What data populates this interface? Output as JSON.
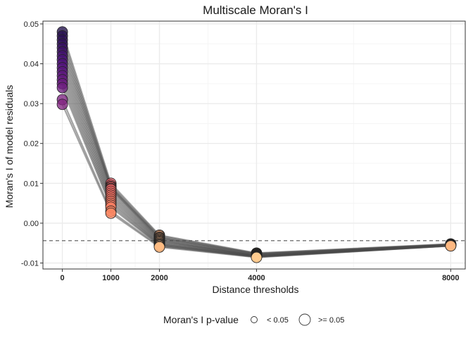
{
  "chart_data": {
    "type": "line",
    "title": "Multiscale Moran's I",
    "xlabel": "Distance thresholds",
    "ylabel": "Moran's I of model residuals",
    "x": [
      0,
      1000,
      2000,
      4000,
      8000
    ],
    "x_tick_labels": [
      "0",
      "1000",
      "2000",
      "4000",
      "8000"
    ],
    "xlim": [
      -400,
      8300
    ],
    "ylim": [
      -0.0115,
      0.0507
    ],
    "y_ticks": [
      -0.01,
      0.0,
      0.01,
      0.02,
      0.03,
      0.04,
      0.05
    ],
    "y_tick_labels": [
      "-0.01",
      "0.00",
      "0.01",
      "0.02",
      "0.03",
      "0.04",
      "0.05"
    ],
    "reference_line": {
      "y": -0.0044,
      "style": "dashed"
    },
    "grid": true,
    "point_fill_scale": "magma",
    "series": [
      {
        "values": [
          0.048,
          0.01,
          -0.003,
          -0.0075,
          -0.0052
        ]
      },
      {
        "values": [
          0.047,
          0.0095,
          -0.0032,
          -0.0076,
          -0.0053
        ]
      },
      {
        "values": [
          0.046,
          0.0092,
          -0.0035,
          -0.0077,
          -0.0054
        ]
      },
      {
        "values": [
          0.045,
          0.009,
          -0.0036,
          -0.0078,
          -0.0053
        ]
      },
      {
        "values": [
          0.044,
          0.0087,
          -0.0038,
          -0.0079,
          -0.0054
        ]
      },
      {
        "values": [
          0.043,
          0.0085,
          -0.004,
          -0.008,
          -0.0055
        ]
      },
      {
        "values": [
          0.042,
          0.008,
          -0.0042,
          -0.0081,
          -0.0054
        ]
      },
      {
        "values": [
          0.041,
          0.0075,
          -0.0044,
          -0.0082,
          -0.0055
        ]
      },
      {
        "values": [
          0.04,
          0.007,
          -0.0046,
          -0.0081,
          -0.0055
        ]
      },
      {
        "values": [
          0.039,
          0.0065,
          -0.0048,
          -0.0082,
          -0.0056
        ]
      },
      {
        "values": [
          0.038,
          0.006,
          -0.005,
          -0.0083,
          -0.0055
        ]
      },
      {
        "values": [
          0.037,
          0.0055,
          -0.0052,
          -0.0083,
          -0.0056
        ]
      },
      {
        "values": [
          0.036,
          0.005,
          -0.0053,
          -0.0084,
          -0.0056
        ]
      },
      {
        "values": [
          0.035,
          0.0045,
          -0.0055,
          -0.0084,
          -0.0057
        ]
      },
      {
        "values": [
          0.034,
          0.004,
          -0.0056,
          -0.0085,
          -0.0056
        ]
      },
      {
        "values": [
          0.031,
          0.003,
          -0.0058,
          -0.0085,
          -0.0057
        ]
      },
      {
        "values": [
          0.0298,
          0.0025,
          -0.006,
          -0.0086,
          -0.0057
        ]
      }
    ],
    "legend": {
      "title": "Moran's I p-value",
      "position": "bottom",
      "entries": [
        {
          "label": "< 0.05",
          "size": "small"
        },
        {
          "label": ">= 0.05",
          "size": "large"
        }
      ]
    }
  },
  "colors": {
    "line": "#4a4a4a",
    "grid_major": "#ebebeb",
    "grid_minor": "#f5f5f5",
    "panel_border": "#333333",
    "reference_line": "#555555"
  }
}
